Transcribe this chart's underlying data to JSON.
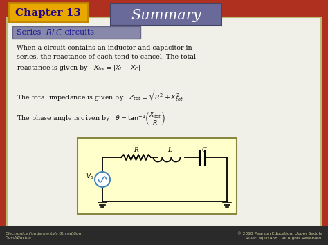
{
  "title": "Summary",
  "chapter": "Chapter 13",
  "subtitle_normal": "Series ",
  "subtitle_italic": "RLC",
  "subtitle_end": " circuits",
  "body_text1": "When a circuit contains an inductor and capacitor in\nseries, the reactance of each tend to cancel. The total\nreactance is given by ",
  "formula1": "$X_{tot} = |X_L - X_C|$",
  "body_text2": "The total impedance is given by ",
  "formula2": "$Z_{tot} = \\sqrt{R^2 + X^2_{tot}}$",
  "body_text3": "The phase angle is given by ",
  "formula3": "$\\theta = \\tan^{-1}\\!\\left(\\dfrac{X_{tot}}{R}\\right)$",
  "footer_left": "Electronics Fundamentals 8th edition\nFloyd/Buchla",
  "footer_right": "© 2010 Pearson Education, Upper Saddle\nRiver, NJ 07458.  All Rights Reserved.",
  "bg_red": "#b03020",
  "slide_bg": "#f0f0e8",
  "chapter_box_bg": "#e8a800",
  "chapter_box_border": "#c08800",
  "chapter_text_color": "#220088",
  "summary_box_bg": "#6a6a9a",
  "summary_text_color": "#ffffff",
  "subtitle_box_bg": "#8888aa",
  "subtitle_box_border": "#666688",
  "subtitle_text_color": "#1a1a99",
  "body_text_color": "#111111",
  "circuit_bg": "#ffffcc",
  "circuit_border": "#888844",
  "footer_bg": "#2a2a2a",
  "footer_text_color": "#cccc99"
}
